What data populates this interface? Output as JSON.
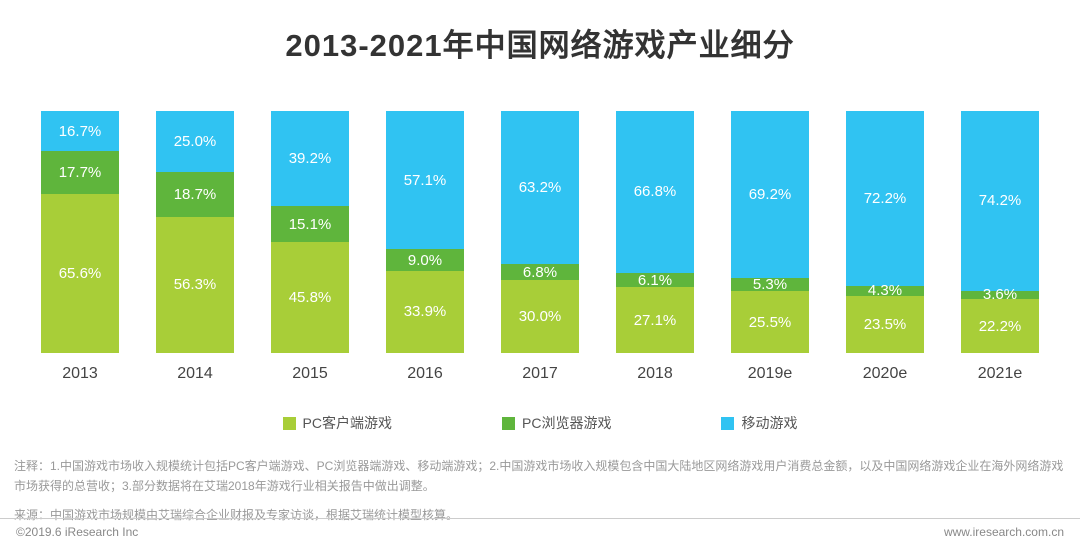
{
  "title": "2013-2021年中国网络游戏产业细分",
  "chart_data": {
    "type": "bar",
    "stacked": true,
    "unit": "%",
    "title": "2013-2021年中国网络游戏产业细分",
    "categories": [
      "2013",
      "2014",
      "2015",
      "2016",
      "2017",
      "2018",
      "2019e",
      "2020e",
      "2021e"
    ],
    "series": [
      {
        "name": "PC客户端游戏",
        "color": "#a8ce38",
        "values": [
          65.6,
          56.3,
          45.8,
          33.9,
          30.0,
          27.1,
          25.5,
          23.5,
          22.2
        ]
      },
      {
        "name": "PC浏览器游戏",
        "color": "#5fb53c",
        "values": [
          17.7,
          18.7,
          15.1,
          9.0,
          6.8,
          6.1,
          5.3,
          4.3,
          3.6
        ]
      },
      {
        "name": "移动游戏",
        "color": "#30c3f2",
        "values": [
          16.7,
          25.0,
          39.2,
          57.1,
          63.2,
          66.8,
          69.2,
          72.2,
          74.2
        ]
      }
    ],
    "ylim": [
      0,
      100
    ],
    "legend_position": "bottom",
    "value_labels": true,
    "grid": false
  },
  "notes": {
    "line1": "注释：1.中国游戏市场收入规模统计包括PC客户端游戏、PC浏览器端游戏、移动端游戏；2.中国游戏市场收入规模包含中国大陆地区网络游戏用户消费总金额，以及中国网络游戏企业在海外网络游戏市场获得的总营收；3.部分数据将在艾瑞2018年游戏行业相关报告中做出调整。",
    "line2": "来源：中国游戏市场规模由艾瑞综合企业财报及专家访谈，根据艾瑞统计模型核算。"
  },
  "footer": {
    "left": "©2019.6 iResearch Inc",
    "right": "www.iresearch.com.cn"
  }
}
